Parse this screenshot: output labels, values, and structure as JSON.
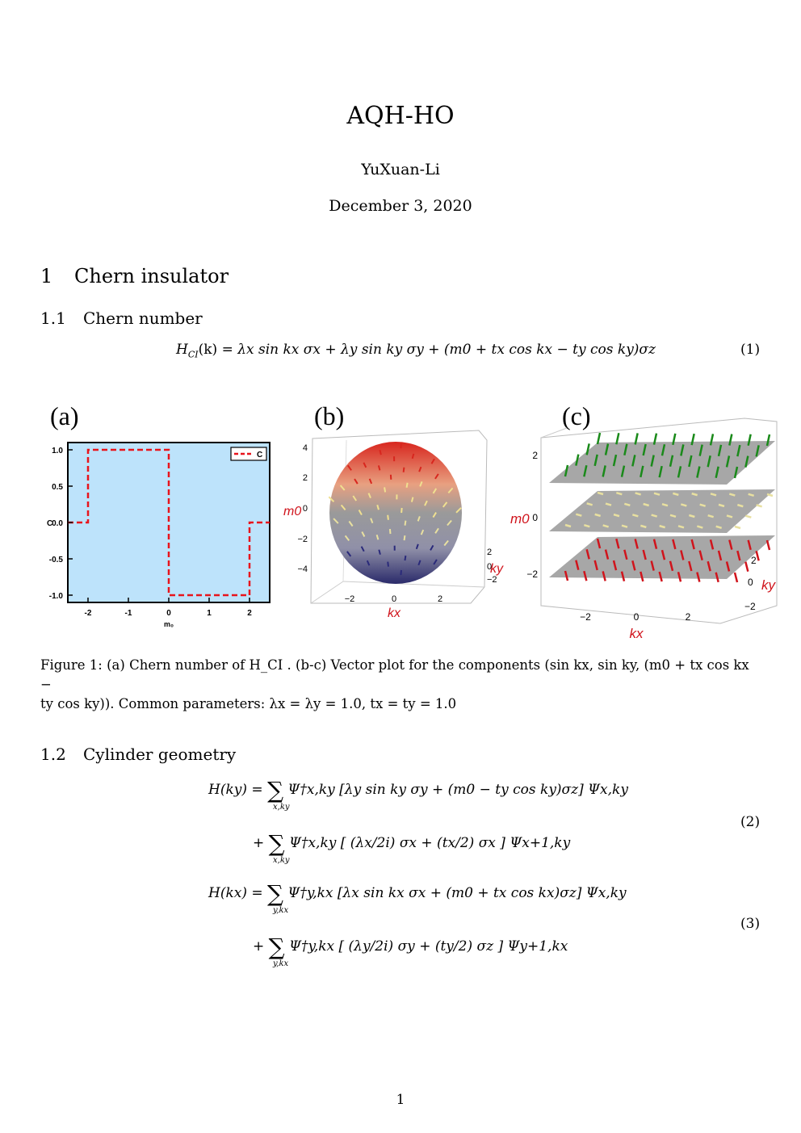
{
  "paper": {
    "title": "AQH-HO",
    "author": "YuXuan-Li",
    "date": "December 3, 2020",
    "page_number": "1"
  },
  "section1": {
    "number": "1",
    "title": "Chern insulator"
  },
  "subsection11": {
    "number": "1.1",
    "title": "Chern number"
  },
  "eq1": {
    "text": "H_CI(k) = λx sin kx σx + λy sin ky σy + (m0 + tx cos kx − ty cos ky)σz",
    "lhs": "H",
    "lhs_sub": "CI",
    "lhs_arg": "(k) =",
    "rhs": "λx sin kx σx + λy sin ky σy + (m0 + tx cos kx − ty cos ky)σz",
    "number": "(1)"
  },
  "figure1": {
    "panel_a_label": "(a)",
    "panel_b_label": "(b)",
    "panel_c_label": "(c)",
    "caption_line1": "Figure 1: (a) Chern number of H_CI . (b-c) Vector plot for the components (sin kx, sin ky, (m0 + tx cos kx −",
    "caption_line2": "ty cos ky)). Common parameters: λx = λy = 1.0, tx = ty = 1.0"
  },
  "subsection12": {
    "number": "1.2",
    "title": "Cylinder geometry"
  },
  "eq2": {
    "line1_lhs": "H(ky) =",
    "line1_rhs": "Ψ†x,ky [λy sin ky σy + (m0 − ty cos ky)σz] Ψx,ky",
    "line1_sum_sub": "x,ky",
    "line2_rhs": "Ψ†x,ky [ (λx/2i) σx + (tx/2) σx ] Ψx+1,ky",
    "line2_sum_sub": "x,ky",
    "number": "(2)"
  },
  "eq3": {
    "line1_lhs": "H(kx) =",
    "line1_rhs": "Ψ†y,kx [λx sin kx σx + (m0 + tx cos kx)σz] Ψx,ky",
    "line1_sum_sub": "y,kx",
    "line2_rhs": "Ψ†y,kx [ (λy/2i) σy + (ty/2) σz ] Ψy+1,kx",
    "line2_sum_sub": "y,kx",
    "number": "(3)"
  },
  "chart_data": [
    {
      "type": "line",
      "panel": "(a)",
      "series": [
        {
          "name": "C",
          "style": "dashed",
          "color": "#e8141c",
          "x": [
            -2.5,
            -2,
            -2,
            0,
            0,
            2,
            2,
            2.5
          ],
          "values": [
            0,
            0,
            1,
            1,
            -1,
            -1,
            0,
            0
          ]
        }
      ],
      "xlabel": "m₀",
      "ylabel": "C",
      "xticks": [
        "-2",
        "-1",
        "0",
        "1",
        "2"
      ],
      "yticks": [
        "1.0",
        "0.5",
        "0.0",
        "-0.5",
        "-1.0"
      ],
      "xlim": [
        -2.5,
        2.5
      ],
      "ylim": [
        -1.1,
        1.1
      ],
      "background": "#bde3fb",
      "legend_position": "top-right"
    },
    {
      "type": "other",
      "panel": "(b)",
      "description_axes": {
        "x": "kx",
        "y": "ky",
        "z": "m0"
      },
      "z_ticks": [
        "4",
        "2",
        "0",
        "−2",
        "−4"
      ],
      "x_ticks": [
        "−2",
        "0",
        "2"
      ],
      "y_ticks": [
        "2",
        "0",
        "−2"
      ]
    },
    {
      "type": "other",
      "panel": "(c)",
      "description_axes": {
        "x": "kx",
        "y": "ky",
        "z": "m0"
      },
      "z_ticks": [
        "2",
        "0",
        "−2"
      ],
      "x_ticks": [
        "−2",
        "0",
        "2"
      ],
      "y_ticks": [
        "2",
        "0",
        "−2"
      ],
      "colors": {
        "top": "#1a8a1a",
        "middle": "#e8e0a0",
        "bottom": "#d0141c"
      }
    }
  ]
}
